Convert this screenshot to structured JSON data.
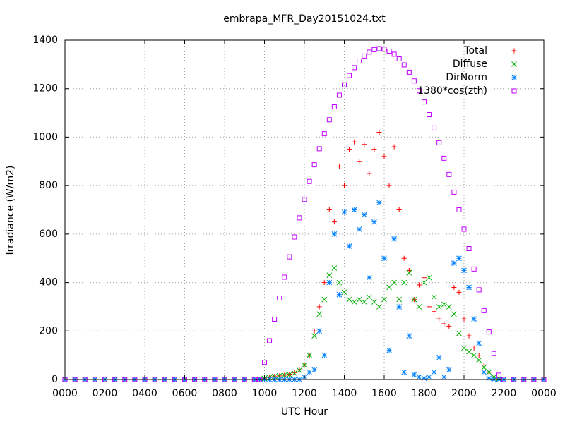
{
  "chart_data": {
    "type": "scatter",
    "title": "embrapa_MFR_Day20151024.txt",
    "xlabel": "UTC Hour",
    "ylabel": "Irradiance (W/m2)",
    "xlim": [
      0,
      24
    ],
    "ylim": [
      0,
      1400
    ],
    "xticks": [
      {
        "value": 0,
        "label": "0000"
      },
      {
        "value": 2,
        "label": "0200"
      },
      {
        "value": 4,
        "label": "0400"
      },
      {
        "value": 6,
        "label": "0600"
      },
      {
        "value": 8,
        "label": "0800"
      },
      {
        "value": 10,
        "label": "1000"
      },
      {
        "value": 12,
        "label": "1200"
      },
      {
        "value": 14,
        "label": "1400"
      },
      {
        "value": 16,
        "label": "1600"
      },
      {
        "value": 18,
        "label": "1800"
      },
      {
        "value": 20,
        "label": "2000"
      },
      {
        "value": 22,
        "label": "2200"
      },
      {
        "value": 24,
        "label": "0000"
      }
    ],
    "yticks": [
      0,
      200,
      400,
      600,
      800,
      1000,
      1200,
      1400
    ],
    "grid": true,
    "legend": "top-right",
    "x": [
      0,
      0.5,
      1,
      1.5,
      2,
      2.5,
      3,
      3.5,
      4,
      4.5,
      5,
      5.5,
      6,
      6.5,
      7,
      7.5,
      8,
      8.5,
      9,
      9.5,
      9.75,
      10,
      10.25,
      10.5,
      10.75,
      11,
      11.25,
      11.5,
      11.75,
      12,
      12.25,
      12.5,
      12.75,
      13,
      13.25,
      13.5,
      13.75,
      14,
      14.25,
      14.5,
      14.75,
      15,
      15.25,
      15.5,
      15.75,
      16,
      16.25,
      16.5,
      16.75,
      17,
      17.25,
      17.5,
      17.75,
      18,
      18.25,
      18.5,
      18.75,
      19,
      19.25,
      19.5,
      19.75,
      20,
      20.25,
      20.5,
      20.75,
      21,
      21.25,
      21.5,
      21.75,
      22,
      22.5,
      23,
      23.5,
      24
    ],
    "series": [
      {
        "name": "Total",
        "color": "#ff0000",
        "marker": "plus",
        "values": [
          0,
          0,
          0,
          0,
          0,
          0,
          0,
          0,
          0,
          0,
          0,
          0,
          0,
          0,
          0,
          0,
          0,
          0,
          0,
          0,
          2,
          5,
          8,
          12,
          15,
          18,
          22,
          28,
          40,
          60,
          100,
          200,
          300,
          400,
          700,
          650,
          880,
          800,
          950,
          980,
          900,
          970,
          850,
          950,
          1020,
          920,
          800,
          960,
          700,
          500,
          450,
          330,
          390,
          420,
          300,
          280,
          250,
          230,
          220,
          380,
          360,
          250,
          180,
          130,
          100,
          60,
          30,
          10,
          5,
          0,
          0,
          0,
          0,
          0
        ]
      },
      {
        "name": "Diffuse",
        "color": "#00b000",
        "marker": "cross",
        "values": [
          0,
          0,
          0,
          0,
          0,
          0,
          0,
          0,
          0,
          0,
          0,
          0,
          0,
          0,
          0,
          0,
          0,
          0,
          0,
          0,
          2,
          5,
          8,
          12,
          15,
          18,
          20,
          26,
          38,
          60,
          100,
          180,
          270,
          330,
          430,
          460,
          400,
          360,
          330,
          320,
          330,
          320,
          340,
          320,
          300,
          330,
          380,
          400,
          330,
          400,
          440,
          330,
          300,
          400,
          420,
          340,
          300,
          310,
          300,
          270,
          190,
          130,
          115,
          100,
          80,
          50,
          30,
          10,
          4,
          0,
          0,
          0,
          0,
          0
        ]
      },
      {
        "name": "DirNorm",
        "color": "#0080ff",
        "marker": "star",
        "values": [
          0,
          0,
          0,
          0,
          0,
          0,
          0,
          0,
          0,
          0,
          0,
          0,
          0,
          0,
          0,
          0,
          0,
          0,
          0,
          0,
          0,
          0,
          0,
          0,
          0,
          0,
          0,
          0,
          0,
          10,
          30,
          40,
          200,
          100,
          400,
          600,
          350,
          690,
          550,
          700,
          620,
          680,
          420,
          650,
          730,
          500,
          120,
          580,
          300,
          30,
          180,
          20,
          10,
          5,
          10,
          30,
          90,
          10,
          40,
          480,
          500,
          450,
          380,
          250,
          150,
          30,
          5,
          0,
          0,
          0,
          0,
          0,
          0,
          0
        ]
      },
      {
        "name": "1380*cos(zth)",
        "color": "#c000ff",
        "marker": "square",
        "values": [
          0,
          0,
          0,
          0,
          0,
          0,
          0,
          0,
          0,
          0,
          0,
          0,
          0,
          0,
          0,
          0,
          0,
          0,
          0,
          0,
          0,
          71,
          160,
          249,
          336,
          422,
          506,
          588,
          667,
          743,
          817,
          886,
          952,
          1014,
          1072,
          1125,
          1173,
          1216,
          1254,
          1287,
          1314,
          1335,
          1351,
          1361,
          1365,
          1363,
          1355,
          1342,
          1323,
          1298,
          1268,
          1232,
          1191,
          1145,
          1093,
          1038,
          977,
          913,
          846,
          773,
          700,
          620,
          540,
          456,
          370,
          284,
          196,
          107,
          18,
          0,
          0,
          0,
          0,
          0
        ]
      }
    ]
  }
}
